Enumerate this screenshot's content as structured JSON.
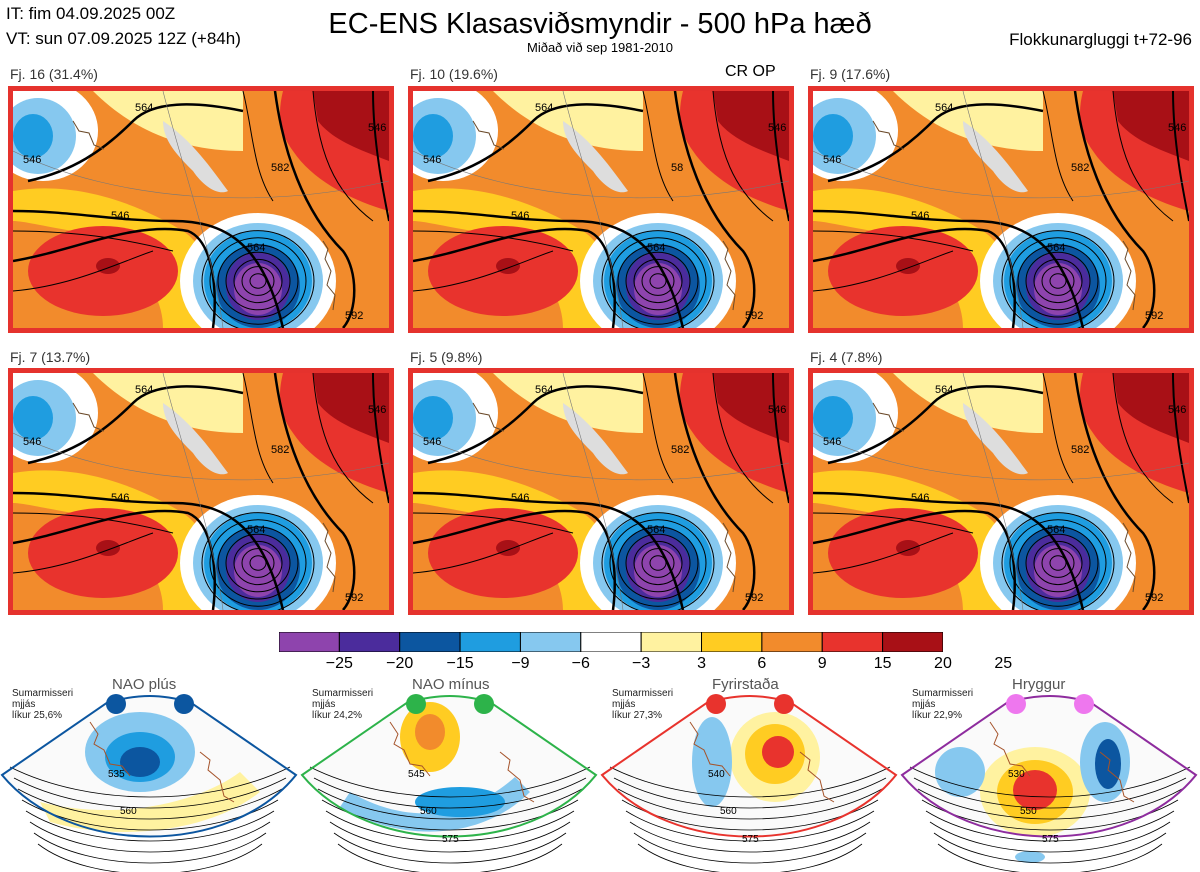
{
  "header": {
    "it": "IT: fim 04.09.2025 00Z",
    "vt": "VT: sun 07.09.2025 12Z  (+84h)",
    "title": "EC-ENS Klasasviðsmyndir - 500 hPa hæð",
    "subtitle": "Miðað við sep 1981-2010",
    "window": "Flokkunargluggi t+72-96",
    "cr_op": "CR OP"
  },
  "panels": [
    {
      "label": "Fj. 16 (31.4%)",
      "contours": [
        "546",
        "564",
        "546",
        "564",
        "582",
        "546",
        "592"
      ]
    },
    {
      "label": "Fj. 10 (19.6%)",
      "contours": [
        "546",
        "564",
        "546",
        "564",
        "58",
        "546",
        "592"
      ]
    },
    {
      "label": "Fj. 9 (17.6%)",
      "contours": [
        "546",
        "564",
        "546",
        "564",
        "582",
        "546",
        "592"
      ]
    },
    {
      "label": "Fj. 7 (13.7%)",
      "contours": [
        "546",
        "564",
        "546",
        "564",
        "582",
        "546",
        "592"
      ]
    },
    {
      "label": "Fj. 5 (9.8%)",
      "contours": [
        "546",
        "564",
        "546",
        "564",
        "582",
        "546",
        "592"
      ]
    },
    {
      "label": "Fj. 4 (7.8%)",
      "contours": [
        "546",
        "564",
        "546",
        "564",
        "582",
        "546",
        "592"
      ]
    }
  ],
  "colorbar": {
    "ticks": [
      "−25",
      "−20",
      "−15",
      "−9",
      "−6",
      "−3",
      "3",
      "6",
      "9",
      "15",
      "20",
      "25"
    ],
    "colors": [
      "#8e44ad",
      "#4b2c9c",
      "#0c56a0",
      "#1f9de0",
      "#86c8ef",
      "#ffffff",
      "#fff2a0",
      "#ffcc22",
      "#f28b2c",
      "#e8332d",
      "#a81016"
    ]
  },
  "regimes": [
    {
      "title": "NAO plús",
      "info": [
        "Sumarmisseri",
        "mjjás",
        "líkur 25,6%"
      ],
      "dot_color": "#0c56a0",
      "frame_color": "#0c56a0",
      "contours": [
        "535",
        "560"
      ]
    },
    {
      "title": "NAO mínus",
      "info": [
        "Sumarmisseri",
        "mjjás",
        "líkur 24,2%"
      ],
      "dot_color": "#2db34a",
      "frame_color": "#2db34a",
      "contours": [
        "545",
        "560",
        "575"
      ]
    },
    {
      "title": "Fyrirstaða",
      "info": [
        "Sumarmisseri",
        "mjjás",
        "líkur 27,3%"
      ],
      "dot_color": "#e8332d",
      "frame_color": "#e8332d",
      "contours": [
        "540",
        "560",
        "575"
      ]
    },
    {
      "title": "Hryggur",
      "info": [
        "Sumarmisseri",
        "mjjás",
        "líkur 22,9%"
      ],
      "dot_color": "#ee77ee",
      "frame_color": "#8e2c9e",
      "contours": [
        "530",
        "550",
        "575"
      ]
    }
  ]
}
